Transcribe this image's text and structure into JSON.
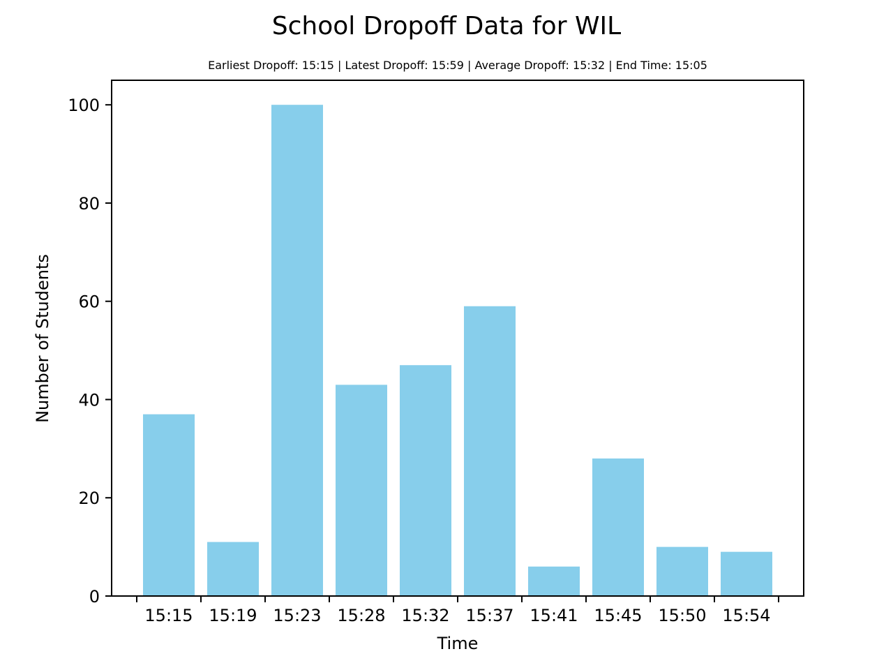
{
  "chart_data": {
    "type": "bar",
    "title": "School Dropoff Data for WIL",
    "subtitle": "Earliest Dropoff: 15:15 | Latest Dropoff: 15:59 | Average Dropoff: 15:32 | End Time: 15:05",
    "xlabel": "Time",
    "ylabel": "Number of Students",
    "tick_labels": [
      "15:15",
      "15:19",
      "15:23",
      "15:28",
      "15:32",
      "15:37",
      "15:41",
      "15:45",
      "15:50",
      "15:54"
    ],
    "values": [
      37,
      11,
      100,
      43,
      47,
      59,
      6,
      28,
      10,
      9
    ],
    "ylim": [
      0,
      105
    ],
    "yticks": [
      0,
      20,
      40,
      60,
      80,
      100
    ],
    "grid": false,
    "legend": "none",
    "bar_color": "#87CEEB",
    "axis_color": "#000000"
  }
}
